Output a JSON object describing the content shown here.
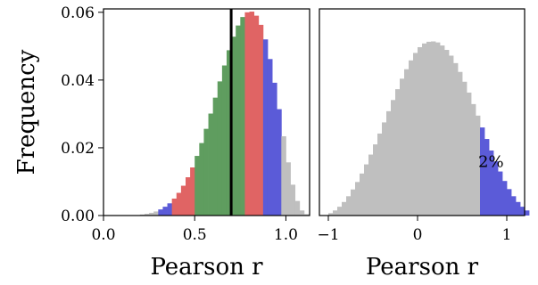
{
  "chart_data": [
    {
      "type": "bar",
      "xlabel": "Pearson r",
      "ylabel": "Frequency",
      "xlim": [
        0,
        1.13
      ],
      "ylim": [
        0,
        0.061
      ],
      "xticks": [
        0.0,
        0.5,
        1.0
      ],
      "xtick_labels": [
        "0.0",
        "0.5",
        "1.0"
      ],
      "yticks": [
        0.0,
        0.02,
        0.04,
        0.06
      ],
      "ytick_labels": [
        "0.00",
        "0.02",
        "0.04",
        "0.06"
      ],
      "bin_width": 0.025,
      "bin_start": 0.2,
      "values": [
        0.0003,
        0.0005,
        0.0008,
        0.0012,
        0.0018,
        0.0026,
        0.0036,
        0.005,
        0.0067,
        0.0088,
        0.0113,
        0.0142,
        0.0176,
        0.0214,
        0.0256,
        0.0301,
        0.0348,
        0.0396,
        0.0443,
        0.0488,
        0.0528,
        0.0561,
        0.0586,
        0.06,
        0.0602,
        0.059,
        0.0563,
        0.052,
        0.0462,
        0.0392,
        0.0314,
        0.0234,
        0.0157,
        0.0091,
        0.0043,
        0.0015,
        0.0004
      ],
      "colors": {
        "outer": "#bfbfbf",
        "tail": "#5b5bd8",
        "mid": "#e06464",
        "center": "#5f9d5f"
      },
      "color_bands": [
        {
          "from": 0.2,
          "to": 0.3,
          "color": "outer"
        },
        {
          "from": 0.3,
          "to": 0.375,
          "color": "tail"
        },
        {
          "from": 0.375,
          "to": 0.5,
          "color": "mid"
        },
        {
          "from": 0.5,
          "to": 0.775,
          "color": "center"
        },
        {
          "from": 0.775,
          "to": 0.875,
          "color": "mid"
        },
        {
          "from": 0.875,
          "to": 0.975,
          "color": "tail"
        },
        {
          "from": 0.975,
          "to": 1.2,
          "color": "outer"
        }
      ],
      "vline": {
        "x": 0.7,
        "color": "#000000"
      }
    },
    {
      "type": "bar",
      "xlabel": "Pearson r",
      "ylabel": "",
      "xlim": [
        -1.1,
        1.2
      ],
      "ylim": [
        0,
        0.061
      ],
      "xticks": [
        -1,
        0,
        1
      ],
      "xtick_labels": [
        "−1",
        "0",
        "1"
      ],
      "yticks": [],
      "bin_width": 0.05,
      "bin_start": -1.0,
      "values": [
        0.0007,
        0.0015,
        0.0026,
        0.004,
        0.0057,
        0.0077,
        0.0099,
        0.0124,
        0.0151,
        0.018,
        0.021,
        0.0242,
        0.0275,
        0.0308,
        0.0341,
        0.0373,
        0.0404,
        0.0432,
        0.0458,
        0.048,
        0.0497,
        0.0508,
        0.0513,
        0.0514,
        0.0511,
        0.0502,
        0.0489,
        0.0472,
        0.045,
        0.0424,
        0.0395,
        0.0363,
        0.0329,
        0.0295,
        0.026,
        0.0226,
        0.0192,
        0.016,
        0.013,
        0.0102,
        0.0078,
        0.0057,
        0.004,
        0.0026,
        0.0015
      ],
      "colors": {
        "base": "#bfbfbf",
        "tail": "#5b5bd8"
      },
      "color_bands": [
        {
          "from": -1.0,
          "to": 0.7,
          "color": "base"
        },
        {
          "from": 0.7,
          "to": 1.3,
          "color": "tail"
        }
      ],
      "annotation": {
        "text": "2%",
        "x": 0.68,
        "y": 0.0143
      }
    }
  ]
}
